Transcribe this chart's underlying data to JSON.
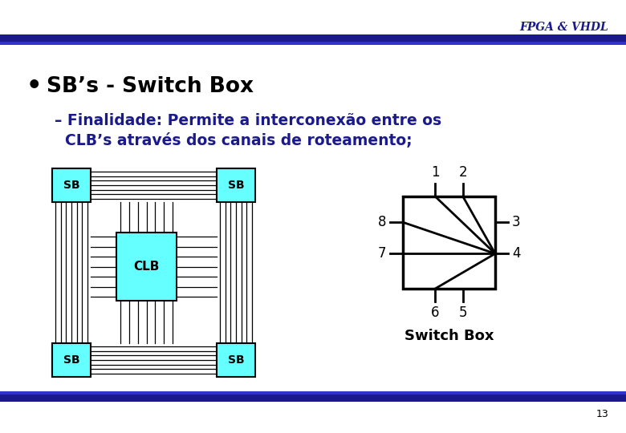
{
  "slide_bg": "#ffffff",
  "header_color": "#1a1a8c",
  "header_text": "FPGA & VHDL",
  "top_bar_dark": "#1a1a8c",
  "top_bar_light": "#3333cc",
  "bullet_text": "SB’s - Switch Box",
  "bullet_color": "#000000",
  "sub_text_line1": "– Finalidade: Permite a interconexão entre os",
  "sub_text_line2": "  CLB’s através dos canais de roteamento;",
  "sub_text_color": "#1a1a8c",
  "sb_box_color": "#66ffff",
  "clb_box_color": "#66ffff",
  "switch_box_label": "Switch Box",
  "page_number": "13",
  "line_color": "#000000"
}
